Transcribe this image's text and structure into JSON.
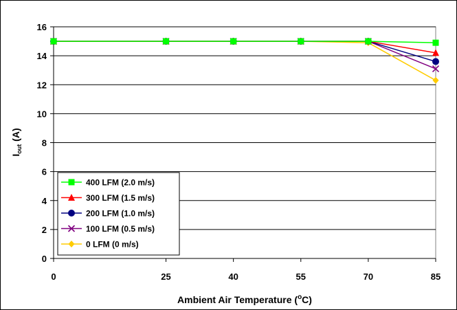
{
  "chart_data": {
    "type": "line",
    "title": "",
    "xlabel": "Ambient Air Temperature (",
    "xlabel_sup": "o",
    "xlabel_tail": "C)",
    "ylabel": "I",
    "ylabel_sub": "out",
    "ylabel_tail": " (A)",
    "x": [
      0,
      25,
      40,
      55,
      70,
      85
    ],
    "x_tick_labels": [
      "0",
      "25",
      "40",
      "55",
      "70",
      "85"
    ],
    "ylim": [
      0,
      16
    ],
    "y_ticks": [
      0,
      2,
      4,
      6,
      8,
      10,
      12,
      14,
      16
    ],
    "y_tick_labels": [
      "0",
      "2",
      "4",
      "6",
      "8",
      "10",
      "12",
      "14",
      "16"
    ],
    "grid": "horizontal",
    "legend_position": "bottom-left",
    "series": [
      {
        "name": "400 LFM (2.0 m/s)",
        "values": [
          15,
          15,
          15,
          15,
          15,
          14.9
        ],
        "color": "#00ff00",
        "marker": "square"
      },
      {
        "name": "300 LFM (1.5 m/s)",
        "values": [
          15,
          15,
          15,
          15,
          15,
          14.2
        ],
        "color": "#ff0000",
        "marker": "triangle"
      },
      {
        "name": "200 LFM (1.0 m/s)",
        "values": [
          15,
          15,
          15,
          15,
          15,
          13.6
        ],
        "color": "#000080",
        "marker": "circle"
      },
      {
        "name": "100 LFM (0.5 m/s)",
        "values": [
          15,
          15,
          15,
          15,
          15,
          13.1
        ],
        "color": "#800080",
        "marker": "x"
      },
      {
        "name": "0 LFM (0 m/s)",
        "values": [
          15,
          15,
          15,
          15,
          14.9,
          12.3
        ],
        "color": "#ffcc00",
        "marker": "diamond"
      }
    ]
  }
}
